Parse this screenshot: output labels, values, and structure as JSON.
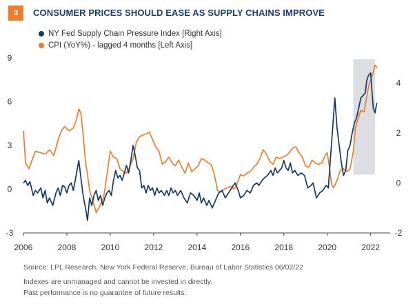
{
  "header": {
    "badge": "3",
    "title": "CONSUMER PRICES SHOULD EASE AS SUPPLY CHAINS IMPROVE"
  },
  "legend": [
    {
      "label": "NY Fed Supply Chain Pressure Index [Right Axis]",
      "color": "#17375e"
    },
    {
      "label": "CPI (YoY%) - lagged 4 months [Left Axis]",
      "color": "#ee7d2b"
    }
  ],
  "footer": {
    "source": "Source: LPL Research, New York Federal Reserve, Bureau of Labor Statistics  06/02/22",
    "note1": "Indexes are unmanaged and cannot be invested in directly.",
    "note2": "Past performance is no guarantee of future results."
  },
  "chart_data": {
    "type": "line",
    "x_ticks": [
      "2006",
      "2008",
      "2010",
      "2012",
      "2014",
      "2016",
      "2018",
      "2020",
      "2022"
    ],
    "left_axis": {
      "ticks": [
        "-3",
        "0",
        "3",
        "6",
        "9"
      ],
      "range": [
        -3,
        9
      ]
    },
    "right_axis": {
      "ticks": [
        "-2",
        "0",
        "2",
        "4"
      ],
      "range": [
        -2,
        5
      ]
    },
    "shaded_region": {
      "x_start": 2021.2,
      "x_end": 2022.2,
      "color": "#dcdee4"
    },
    "series": [
      {
        "name": "CPI (YoY%) - lagged 4 months [Left Axis]",
        "axis": "left",
        "color": "#ee7d2b",
        "points": [
          [
            2006.0,
            4.0
          ],
          [
            2006.1,
            1.8
          ],
          [
            2006.25,
            1.4
          ],
          [
            2006.4,
            2.0
          ],
          [
            2006.55,
            2.6
          ],
          [
            2006.8,
            2.5
          ],
          [
            2007.0,
            2.4
          ],
          [
            2007.2,
            2.7
          ],
          [
            2007.4,
            2.3
          ],
          [
            2007.6,
            3.4
          ],
          [
            2007.75,
            4.0
          ],
          [
            2007.9,
            4.3
          ],
          [
            2008.1,
            4.0
          ],
          [
            2008.3,
            4.2
          ],
          [
            2008.45,
            4.8
          ],
          [
            2008.55,
            5.5
          ],
          [
            2008.65,
            5.2
          ],
          [
            2008.75,
            3.7
          ],
          [
            2008.85,
            2.0
          ],
          [
            2008.95,
            1.0
          ],
          [
            2009.05,
            -0.1
          ],
          [
            2009.2,
            -0.8
          ],
          [
            2009.35,
            -1.6
          ],
          [
            2009.5,
            -1.2
          ],
          [
            2009.7,
            -0.5
          ],
          [
            2009.85,
            1.0
          ],
          [
            2010.0,
            2.6
          ],
          [
            2010.15,
            2.2
          ],
          [
            2010.3,
            2.1
          ],
          [
            2010.45,
            1.4
          ],
          [
            2010.6,
            1.2
          ],
          [
            2010.75,
            1.1
          ],
          [
            2010.9,
            1.5
          ],
          [
            2011.05,
            2.1
          ],
          [
            2011.2,
            3.2
          ],
          [
            2011.35,
            3.6
          ],
          [
            2011.5,
            3.7
          ],
          [
            2011.65,
            3.8
          ],
          [
            2011.8,
            3.9
          ],
          [
            2011.95,
            3.4
          ],
          [
            2012.1,
            2.9
          ],
          [
            2012.25,
            2.6
          ],
          [
            2012.4,
            1.7
          ],
          [
            2012.55,
            1.9
          ],
          [
            2012.7,
            2.2
          ],
          [
            2012.85,
            1.8
          ],
          [
            2013.0,
            1.6
          ],
          [
            2013.15,
            2.0
          ],
          [
            2013.3,
            1.5
          ],
          [
            2013.45,
            1.1
          ],
          [
            2013.6,
            1.8
          ],
          [
            2013.75,
            1.2
          ],
          [
            2013.9,
            1.4
          ],
          [
            2014.05,
            1.6
          ],
          [
            2014.2,
            2.1
          ],
          [
            2014.35,
            2.0
          ],
          [
            2014.5,
            1.8
          ],
          [
            2014.65,
            1.7
          ],
          [
            2014.8,
            1.0
          ],
          [
            2014.95,
            -0.1
          ],
          [
            2015.1,
            -0.2
          ],
          [
            2015.25,
            0.0
          ],
          [
            2015.4,
            0.1
          ],
          [
            2015.55,
            0.2
          ],
          [
            2015.7,
            0.0
          ],
          [
            2015.85,
            0.4
          ],
          [
            2016.0,
            1.0
          ],
          [
            2016.15,
            0.9
          ],
          [
            2016.3,
            1.1
          ],
          [
            2016.45,
            1.2
          ],
          [
            2016.6,
            1.5
          ],
          [
            2016.75,
            1.7
          ],
          [
            2016.9,
            2.1
          ],
          [
            2017.05,
            2.7
          ],
          [
            2017.2,
            2.4
          ],
          [
            2017.35,
            1.9
          ],
          [
            2017.5,
            1.7
          ],
          [
            2017.65,
            2.2
          ],
          [
            2017.8,
            2.1
          ],
          [
            2017.95,
            2.2
          ],
          [
            2018.1,
            2.3
          ],
          [
            2018.25,
            2.5
          ],
          [
            2018.4,
            2.8
          ],
          [
            2018.55,
            2.9
          ],
          [
            2018.7,
            2.5
          ],
          [
            2018.85,
            2.2
          ],
          [
            2019.0,
            1.6
          ],
          [
            2019.15,
            1.5
          ],
          [
            2019.3,
            2.0
          ],
          [
            2019.45,
            1.8
          ],
          [
            2019.6,
            1.7
          ],
          [
            2019.75,
            1.8
          ],
          [
            2019.9,
            2.3
          ],
          [
            2020.0,
            2.5
          ],
          [
            2020.1,
            1.5
          ],
          [
            2020.2,
            0.3
          ],
          [
            2020.3,
            0.1
          ],
          [
            2020.45,
            0.6
          ],
          [
            2020.6,
            1.3
          ],
          [
            2020.75,
            1.4
          ],
          [
            2020.9,
            1.2
          ],
          [
            2021.05,
            1.4
          ],
          [
            2021.2,
            2.6
          ],
          [
            2021.3,
            4.2
          ],
          [
            2021.45,
            5.0
          ],
          [
            2021.55,
            5.4
          ],
          [
            2021.7,
            5.3
          ],
          [
            2021.8,
            6.2
          ],
          [
            2021.9,
            7.0
          ],
          [
            2022.0,
            7.5
          ],
          [
            2022.1,
            7.9
          ],
          [
            2022.2,
            8.5
          ],
          [
            2022.3,
            8.3
          ]
        ]
      },
      {
        "name": "NY Fed Supply Chain Pressure Index [Right Axis]",
        "axis": "right",
        "color": "#17375e",
        "points": [
          [
            2006.0,
            0.0
          ],
          [
            2006.1,
            0.1
          ],
          [
            2006.2,
            -0.1
          ],
          [
            2006.3,
            0.05
          ],
          [
            2006.45,
            -0.5
          ],
          [
            2006.55,
            -0.3
          ],
          [
            2006.65,
            -0.4
          ],
          [
            2006.8,
            -0.2
          ],
          [
            2006.9,
            -0.6
          ],
          [
            2007.0,
            -0.3
          ],
          [
            2007.1,
            -0.8
          ],
          [
            2007.2,
            -0.6
          ],
          [
            2007.35,
            -0.9
          ],
          [
            2007.5,
            -0.4
          ],
          [
            2007.6,
            -0.2
          ],
          [
            2007.7,
            -0.5
          ],
          [
            2007.8,
            -0.1
          ],
          [
            2007.9,
            -0.15
          ],
          [
            2008.0,
            -0.4
          ],
          [
            2008.1,
            -0.1
          ],
          [
            2008.2,
            0.0
          ],
          [
            2008.3,
            -0.3
          ],
          [
            2008.45,
            0.4
          ],
          [
            2008.55,
            0.9
          ],
          [
            2008.65,
            0.2
          ],
          [
            2008.75,
            -0.5
          ],
          [
            2008.9,
            -1.2
          ],
          [
            2008.95,
            -1.5
          ],
          [
            2009.05,
            -0.6
          ],
          [
            2009.15,
            -0.9
          ],
          [
            2009.25,
            -0.5
          ],
          [
            2009.35,
            -0.3
          ],
          [
            2009.45,
            -0.7
          ],
          [
            2009.55,
            -0.5
          ],
          [
            2009.65,
            -0.9
          ],
          [
            2009.75,
            -0.6
          ],
          [
            2009.85,
            -0.4
          ],
          [
            2009.95,
            -0.3
          ],
          [
            2010.05,
            -0.5
          ],
          [
            2010.15,
            0.1
          ],
          [
            2010.25,
            0.5
          ],
          [
            2010.35,
            0.2
          ],
          [
            2010.45,
            0.3
          ],
          [
            2010.55,
            0.1
          ],
          [
            2010.65,
            0.4
          ],
          [
            2010.75,
            0.7
          ],
          [
            2010.85,
            0.4
          ],
          [
            2010.95,
            0.9
          ],
          [
            2011.05,
            1.5
          ],
          [
            2011.15,
            1.1
          ],
          [
            2011.25,
            0.6
          ],
          [
            2011.35,
            0.5
          ],
          [
            2011.45,
            -0.2
          ],
          [
            2011.55,
            -0.1
          ],
          [
            2011.65,
            -0.4
          ],
          [
            2011.75,
            -0.1
          ],
          [
            2011.85,
            -0.3
          ],
          [
            2011.95,
            -0.2
          ],
          [
            2012.05,
            -0.5
          ],
          [
            2012.15,
            -0.2
          ],
          [
            2012.25,
            -0.4
          ],
          [
            2012.35,
            -0.3
          ],
          [
            2012.5,
            -0.5
          ],
          [
            2012.6,
            -0.3
          ],
          [
            2012.7,
            -0.5
          ],
          [
            2012.8,
            -0.2
          ],
          [
            2012.9,
            -0.4
          ],
          [
            2013.0,
            -0.3
          ],
          [
            2013.1,
            -0.5
          ],
          [
            2013.25,
            -0.3
          ],
          [
            2013.4,
            -0.6
          ],
          [
            2013.55,
            -0.8
          ],
          [
            2013.7,
            -0.4
          ],
          [
            2013.85,
            -0.5
          ],
          [
            2014.0,
            -0.7
          ],
          [
            2014.1,
            -0.4
          ],
          [
            2014.2,
            -0.8
          ],
          [
            2014.3,
            -0.6
          ],
          [
            2014.45,
            -0.9
          ],
          [
            2014.55,
            -0.7
          ],
          [
            2014.7,
            -1.0
          ],
          [
            2014.85,
            -0.7
          ],
          [
            2015.0,
            -0.4
          ],
          [
            2015.15,
            -0.3
          ],
          [
            2015.3,
            -0.6
          ],
          [
            2015.45,
            -0.4
          ],
          [
            2015.6,
            -0.2
          ],
          [
            2015.75,
            0.0
          ],
          [
            2015.9,
            -0.3
          ],
          [
            2016.0,
            -0.6
          ],
          [
            2016.15,
            -0.5
          ],
          [
            2016.3,
            -0.3
          ],
          [
            2016.45,
            -0.4
          ],
          [
            2016.6,
            -0.1
          ],
          [
            2016.75,
            0.0
          ],
          [
            2016.85,
            -0.1
          ],
          [
            2017.0,
            0.1
          ],
          [
            2017.1,
            0.2
          ],
          [
            2017.25,
            0.3
          ],
          [
            2017.4,
            0.5
          ],
          [
            2017.5,
            0.3
          ],
          [
            2017.6,
            0.6
          ],
          [
            2017.7,
            0.4
          ],
          [
            2017.8,
            0.5
          ],
          [
            2017.9,
            0.6
          ],
          [
            2018.0,
            0.9
          ],
          [
            2018.1,
            0.6
          ],
          [
            2018.2,
            0.5
          ],
          [
            2018.3,
            0.8
          ],
          [
            2018.4,
            0.4
          ],
          [
            2018.5,
            0.5
          ],
          [
            2018.65,
            0.3
          ],
          [
            2018.8,
            0.4
          ],
          [
            2018.95,
            0.3
          ],
          [
            2019.1,
            -0.2
          ],
          [
            2019.25,
            -0.1
          ],
          [
            2019.35,
            0.0
          ],
          [
            2019.5,
            -0.6
          ],
          [
            2019.65,
            -0.4
          ],
          [
            2019.8,
            -0.3
          ],
          [
            2019.95,
            -0.1
          ],
          [
            2020.05,
            -0.2
          ],
          [
            2020.15,
            1.0
          ],
          [
            2020.25,
            2.2
          ],
          [
            2020.35,
            3.4
          ],
          [
            2020.45,
            2.2
          ],
          [
            2020.55,
            1.5
          ],
          [
            2020.65,
            0.8
          ],
          [
            2020.75,
            0.3
          ],
          [
            2020.85,
            0.5
          ],
          [
            2020.95,
            1.3
          ],
          [
            2021.05,
            1.5
          ],
          [
            2021.15,
            2.0
          ],
          [
            2021.25,
            2.4
          ],
          [
            2021.35,
            2.6
          ],
          [
            2021.45,
            3.0
          ],
          [
            2021.55,
            3.4
          ],
          [
            2021.65,
            3.5
          ],
          [
            2021.75,
            3.6
          ],
          [
            2021.82,
            4.1
          ],
          [
            2021.9,
            4.3
          ],
          [
            2022.0,
            4.4
          ],
          [
            2022.05,
            3.8
          ],
          [
            2022.12,
            3.0
          ],
          [
            2022.2,
            2.8
          ],
          [
            2022.28,
            3.2
          ]
        ]
      }
    ]
  }
}
